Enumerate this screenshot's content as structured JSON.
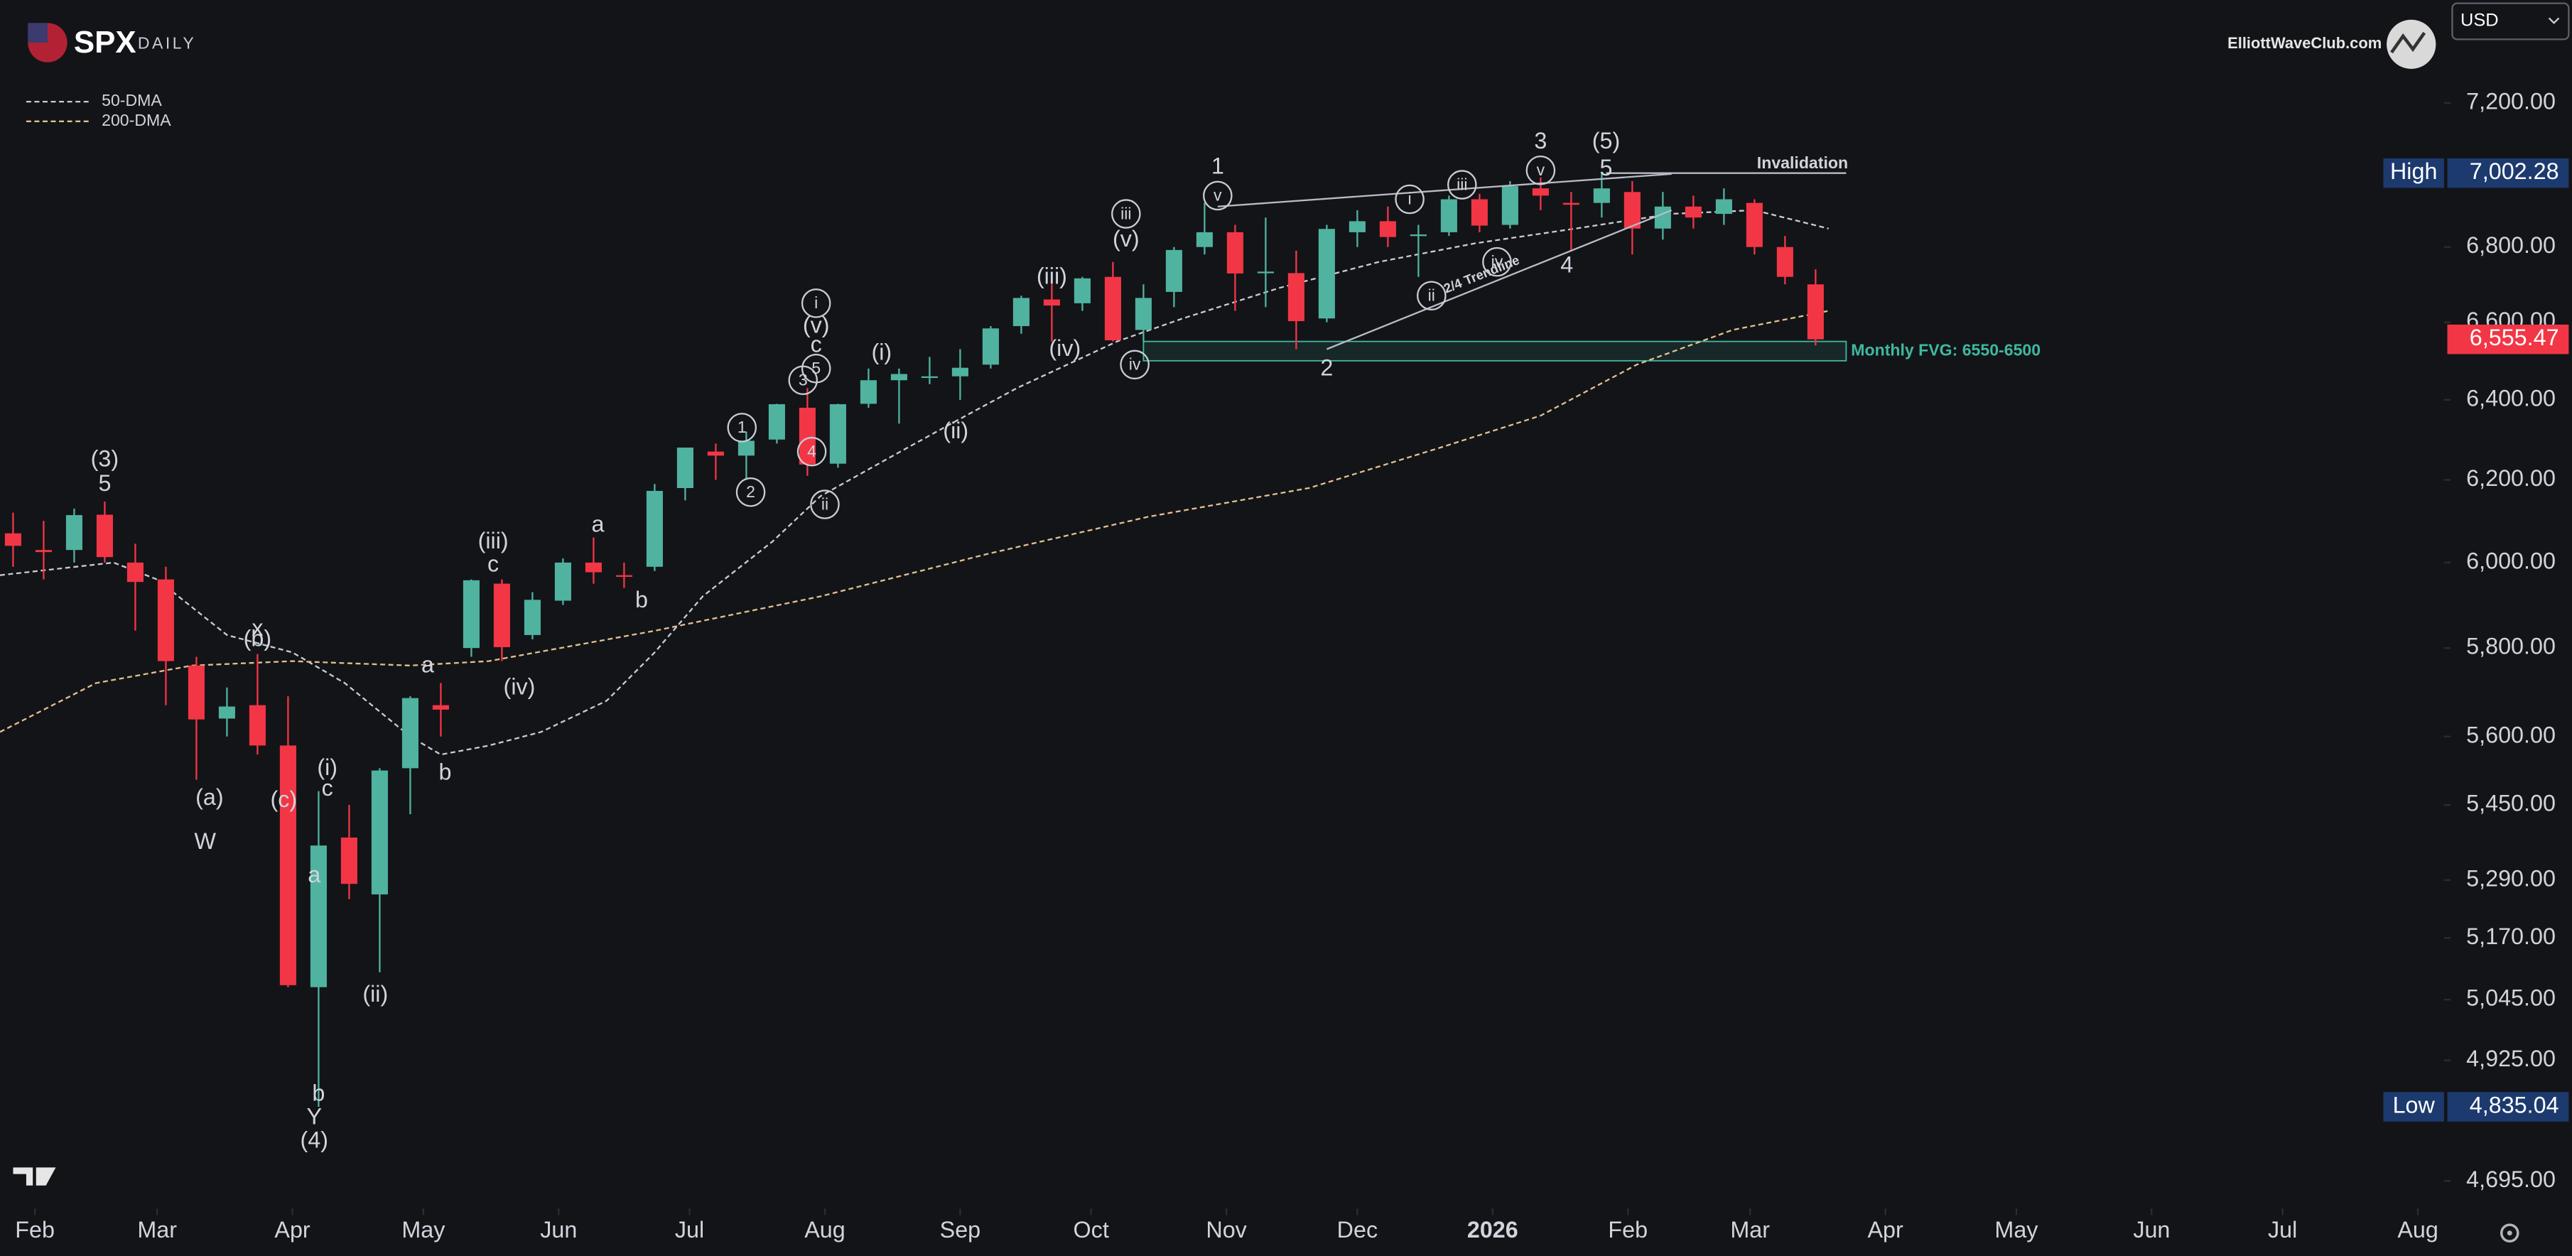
{
  "chart_data": {
    "type": "candlestick",
    "title": "SPX",
    "subtitle": "DAILY",
    "source": "ElliottWaveClub.com",
    "currency": "USD",
    "log_y": true,
    "up_color": "#4fb3a0",
    "down_color": "#f23645",
    "xlim": [
      "2025-01-24",
      "2026-08-07"
    ],
    "ylim": [
      4650,
      7500
    ],
    "yticks": [
      {
        "value": 7200,
        "label": "7,200.00"
      },
      {
        "value": 6800,
        "label": "6,800.00"
      },
      {
        "value": 6600,
        "label": "6,600.00"
      },
      {
        "value": 6400,
        "label": "6,400.00"
      },
      {
        "value": 6200,
        "label": "6,200.00"
      },
      {
        "value": 6000,
        "label": "6,000.00"
      },
      {
        "value": 5800,
        "label": "5,800.00"
      },
      {
        "value": 5600,
        "label": "5,600.00"
      },
      {
        "value": 5450,
        "label": "5,450.00"
      },
      {
        "value": 5290,
        "label": "5,290.00"
      },
      {
        "value": 5170,
        "label": "5,170.00"
      },
      {
        "value": 5045,
        "label": "5,045.00"
      },
      {
        "value": 4925,
        "label": "4,925.00"
      },
      {
        "value": 4695,
        "label": "4,695.00"
      }
    ],
    "xticks": [
      {
        "value": "2025-02-01",
        "label": "Feb"
      },
      {
        "value": "2025-03-01",
        "label": "Mar"
      },
      {
        "value": "2025-04-01",
        "label": "Apr"
      },
      {
        "value": "2025-05-01",
        "label": "May"
      },
      {
        "value": "2025-06-01",
        "label": "Jun"
      },
      {
        "value": "2025-07-01",
        "label": "Jul"
      },
      {
        "value": "2025-08-01",
        "label": "Aug"
      },
      {
        "value": "2025-09-01",
        "label": "Sep"
      },
      {
        "value": "2025-10-01",
        "label": "Oct"
      },
      {
        "value": "2025-11-01",
        "label": "Nov"
      },
      {
        "value": "2025-12-01",
        "label": "Dec"
      },
      {
        "value": "2026-01-01",
        "label": "2026"
      },
      {
        "value": "2026-02-01",
        "label": "Feb"
      },
      {
        "value": "2026-03-01",
        "label": "Mar"
      },
      {
        "value": "2026-04-01",
        "label": "Apr"
      },
      {
        "value": "2026-05-01",
        "label": "May"
      },
      {
        "value": "2026-06-01",
        "label": "Jun"
      },
      {
        "value": "2026-07-01",
        "label": "Jul"
      },
      {
        "value": "2026-08-01",
        "label": "Aug"
      }
    ],
    "x": [
      "2025-01-27",
      "2025-02-03",
      "2025-02-10",
      "2025-02-17",
      "2025-02-24",
      "2025-03-03",
      "2025-03-10",
      "2025-03-17",
      "2025-03-24",
      "2025-03-31",
      "2025-04-07",
      "2025-04-14",
      "2025-04-21",
      "2025-04-28",
      "2025-05-05",
      "2025-05-12",
      "2025-05-19",
      "2025-05-26",
      "2025-06-02",
      "2025-06-09",
      "2025-06-16",
      "2025-06-23",
      "2025-06-30",
      "2025-07-07",
      "2025-07-14",
      "2025-07-21",
      "2025-07-28",
      "2025-08-04",
      "2025-08-11",
      "2025-08-18",
      "2025-08-25",
      "2025-09-01",
      "2025-09-08",
      "2025-09-15",
      "2025-09-22",
      "2025-09-29",
      "2025-10-06",
      "2025-10-13",
      "2025-10-20",
      "2025-10-27",
      "2025-11-03",
      "2025-11-10",
      "2025-11-17",
      "2025-11-24",
      "2025-12-01",
      "2025-12-08",
      "2025-12-15",
      "2025-12-22",
      "2025-12-29",
      "2026-01-05",
      "2026-01-12",
      "2026-01-19",
      "2026-01-26",
      "2026-02-02",
      "2026-02-09",
      "2026-02-16",
      "2026-02-23",
      "2026-03-02",
      "2026-03-09",
      "2026-03-16"
    ],
    "open": [
      6070,
      6030,
      6030,
      6115,
      6000,
      5960,
      5760,
      5640,
      5670,
      5580,
      5070,
      5380,
      5260,
      5530,
      5670,
      5800,
      5950,
      5830,
      5910,
      6000,
      5970,
      5990,
      6180,
      6270,
      6260,
      6300,
      6380,
      6240,
      6390,
      6450,
      6460,
      6460,
      6490,
      6590,
      6660,
      6650,
      6720,
      6580,
      6680,
      6800,
      6840,
      6730,
      6730,
      6610,
      6840,
      6870,
      6830,
      6840,
      6930,
      6860,
      6960,
      6920,
      6920,
      6950,
      6850,
      6910,
      6890,
      6920,
      6800,
      6700
    ],
    "high": [
      6120,
      6100,
      6130,
      6147,
      6045,
      5990,
      5780,
      5710,
      5786,
      5690,
      5480,
      5450,
      5530,
      5690,
      5720,
      5960,
      5960,
      5930,
      6010,
      6060,
      6000,
      6190,
      6280,
      6290,
      6320,
      6390,
      6430,
      6390,
      6480,
      6480,
      6510,
      6530,
      6590,
      6670,
      6700,
      6720,
      6760,
      6700,
      6800,
      6920,
      6860,
      6880,
      6790,
      6860,
      6900,
      6910,
      6860,
      6940,
      6945,
      6980,
      6990,
      6950,
      7002.28,
      6980,
      6950,
      6940,
      6960,
      6930,
      6830,
      6740
    ],
    "low": [
      5990,
      5960,
      6000,
      6000,
      5840,
      5670,
      5505,
      5600,
      5560,
      5070,
      4835.04,
      5250,
      5100,
      5430,
      5600,
      5780,
      5770,
      5820,
      5900,
      5950,
      5940,
      5980,
      6150,
      6200,
      6200,
      6290,
      6210,
      6230,
      6380,
      6340,
      6440,
      6400,
      6480,
      6570,
      6550,
      6630,
      6550,
      6550,
      6640,
      6780,
      6630,
      6640,
      6530,
      6600,
      6800,
      6800,
      6720,
      6830,
      6840,
      6850,
      6900,
      6790,
      6880,
      6780,
      6820,
      6850,
      6860,
      6780,
      6700,
      6540
    ],
    "close": [
      6040,
      6025,
      6114,
      6013,
      5954,
      5770,
      5638,
      5667,
      5580,
      5074,
      5363,
      5282,
      5525,
      5686,
      5660,
      5958,
      5802,
      5912,
      6000,
      5977,
      5968,
      6173,
      6280,
      6260,
      6297,
      6389,
      6238,
      6389,
      6450,
      6466,
      6460,
      6482,
      6584,
      6664,
      6644,
      6716,
      6553,
      6664,
      6792,
      6840,
      6729,
      6734,
      6603,
      6849,
      6870,
      6827,
      6834,
      6930,
      6858,
      6966,
      6940,
      6915,
      6960,
      6850,
      6910,
      6880,
      6930,
      6800,
      6720,
      6555.47
    ],
    "series": [
      {
        "name": "50-DMA",
        "color": "#c9ccd4",
        "x": [
          "2025-01-24",
          "2025-02-19",
          "2025-03-01",
          "2025-03-17",
          "2025-04-01",
          "2025-04-13",
          "2025-04-28",
          "2025-05-05",
          "2025-05-16",
          "2025-05-28",
          "2025-06-12",
          "2025-06-23",
          "2025-07-04",
          "2025-07-20",
          "2025-07-31",
          "2025-08-15",
          "2025-08-30",
          "2025-09-14",
          "2025-10-07",
          "2025-10-22",
          "2025-11-13",
          "2025-12-06",
          "2025-12-28",
          "2026-01-20",
          "2026-02-11",
          "2026-03-02",
          "2026-03-19"
        ],
        "values": [
          5970,
          6000,
          5960,
          5830,
          5790,
          5720,
          5600,
          5560,
          5580,
          5610,
          5680,
          5790,
          5920,
          6050,
          6160,
          6250,
          6340,
          6430,
          6550,
          6610,
          6690,
          6760,
          6810,
          6850,
          6890,
          6900,
          6850
        ]
      },
      {
        "name": "200-DMA",
        "color": "#e3c08f",
        "x": [
          "2025-01-24",
          "2025-02-15",
          "2025-03-09",
          "2025-04-01",
          "2025-04-28",
          "2025-05-16",
          "2025-06-23",
          "2025-07-31",
          "2025-09-07",
          "2025-10-14",
          "2025-11-20",
          "2025-12-20",
          "2026-01-12",
          "2026-02-03",
          "2026-02-25",
          "2026-03-19"
        ],
        "values": [
          5610,
          5720,
          5760,
          5770,
          5760,
          5770,
          5840,
          5920,
          6020,
          6110,
          6180,
          6280,
          6360,
          6490,
          6580,
          6630
        ]
      }
    ],
    "trendlines": [
      {
        "x": [
          "2025-10-30",
          "2026-02-11"
        ],
        "values": [
          6910,
          7000
        ]
      },
      {
        "x": [
          "2025-11-24",
          "2026-02-11"
        ],
        "values": [
          6530,
          6900
        ],
        "label": "2/4 Trendline"
      },
      {
        "x": [
          "2026-01-27",
          "2026-03-23"
        ],
        "values": [
          7002.28,
          7002.28
        ]
      }
    ],
    "zones": [
      {
        "label": "Monthly FVG: 6550-6500",
        "x": [
          "2025-10-13",
          "2026-03-23"
        ],
        "range": [
          6500,
          6550
        ],
        "color": "#3fb8a0"
      }
    ],
    "price_labels": [
      {
        "name": "High",
        "value": 7002.28,
        "label": "7,002.28",
        "color": "#1c3a6e"
      },
      {
        "value": 6555.47,
        "label": "6,555.47",
        "color": "#f23645"
      },
      {
        "name": "Low",
        "value": 4835.04,
        "label": "4,835.04",
        "color": "#1c3a6e"
      }
    ],
    "annotations": [
      {
        "label": "(3)",
        "x": "2025-02-17",
        "y": 6250
      },
      {
        "label": "5",
        "x": "2025-02-17",
        "y": 6190
      },
      {
        "label": "x",
        "x": "2025-03-24",
        "y": 5845
      },
      {
        "label": "(b)",
        "x": "2025-03-24",
        "y": 5820
      },
      {
        "label": "(a)",
        "x": "2025-03-13",
        "y": 5465
      },
      {
        "label": "W",
        "x": "2025-03-12",
        "y": 5370
      },
      {
        "label": "(c)",
        "x": "2025-03-30",
        "y": 5460
      },
      {
        "label": "(i)",
        "x": "2025-04-09",
        "y": 5530
      },
      {
        "label": "c",
        "x": "2025-04-09",
        "y": 5485
      },
      {
        "label": "a",
        "x": "2025-04-06",
        "y": 5300
      },
      {
        "label": "(ii)",
        "x": "2025-04-20",
        "y": 5055
      },
      {
        "label": "b",
        "x": "2025-04-07",
        "y": 4860
      },
      {
        "label": "Y",
        "x": "2025-04-06",
        "y": 4815
      },
      {
        "label": "(4)",
        "x": "2025-04-06",
        "y": 4770
      },
      {
        "label": "a",
        "x": "2025-05-02",
        "y": 5760
      },
      {
        "label": "b",
        "x": "2025-05-06",
        "y": 5520
      },
      {
        "label": "(iii)",
        "x": "2025-05-17",
        "y": 6050
      },
      {
        "label": "c",
        "x": "2025-05-17",
        "y": 5995
      },
      {
        "label": "(iv)",
        "x": "2025-05-23",
        "y": 5710
      },
      {
        "label": "a",
        "x": "2025-06-10",
        "y": 6090
      },
      {
        "label": "b",
        "x": "2025-06-20",
        "y": 5910
      },
      {
        "label": "1",
        "x": "2025-07-13",
        "y": 6330,
        "circled": true
      },
      {
        "label": "2",
        "x": "2025-07-15",
        "y": 6170,
        "circled": true
      },
      {
        "label": "3",
        "x": "2025-07-27",
        "y": 6450,
        "circled": true
      },
      {
        "label": "4",
        "x": "2025-07-29",
        "y": 6270,
        "circled": true
      },
      {
        "label": "5",
        "x": "2025-07-30",
        "y": 6480,
        "circled": true
      },
      {
        "label": "c",
        "x": "2025-07-30",
        "y": 6540
      },
      {
        "label": "(v)",
        "x": "2025-07-30",
        "y": 6590
      },
      {
        "label": "i",
        "x": "2025-07-30",
        "y": 6650,
        "circled": true
      },
      {
        "label": "ii",
        "x": "2025-08-01",
        "y": 6140,
        "circled": true
      },
      {
        "label": "(i)",
        "x": "2025-08-14",
        "y": 6520
      },
      {
        "label": "(ii)",
        "x": "2025-08-31",
        "y": 6320
      },
      {
        "label": "(iii)",
        "x": "2025-09-22",
        "y": 6720
      },
      {
        "label": "(iv)",
        "x": "2025-09-25",
        "y": 6530
      },
      {
        "label": "iii",
        "x": "2025-10-09",
        "y": 6890,
        "circled": true
      },
      {
        "label": "(v)",
        "x": "2025-10-09",
        "y": 6820
      },
      {
        "label": "iv",
        "x": "2025-10-11",
        "y": 6490,
        "circled": true
      },
      {
        "label": "1",
        "x": "2025-10-30",
        "y": 7020
      },
      {
        "label": "v",
        "x": "2025-10-30",
        "y": 6940,
        "circled": true
      },
      {
        "label": "2",
        "x": "2025-11-24",
        "y": 6480
      },
      {
        "label": "i",
        "x": "2025-12-13",
        "y": 6930,
        "circled": true
      },
      {
        "label": "ii",
        "x": "2025-12-18",
        "y": 6670,
        "circled": true
      },
      {
        "label": "iii",
        "x": "2025-12-25",
        "y": 6970,
        "circled": true
      },
      {
        "label": "iv",
        "x": "2026-01-02",
        "y": 6760,
        "circled": true
      },
      {
        "label": "3",
        "x": "2026-01-12",
        "y": 7090
      },
      {
        "label": "v",
        "x": "2026-01-12",
        "y": 7010,
        "circled": true
      },
      {
        "label": "(5)",
        "x": "2026-01-27",
        "y": 7090
      },
      {
        "label": "5",
        "x": "2026-01-27",
        "y": 7015
      },
      {
        "label": "4",
        "x": "2026-01-18",
        "y": 6750
      },
      {
        "label": "Invalidation",
        "x": "2026-03-13",
        "y": 7030
      }
    ]
  }
}
